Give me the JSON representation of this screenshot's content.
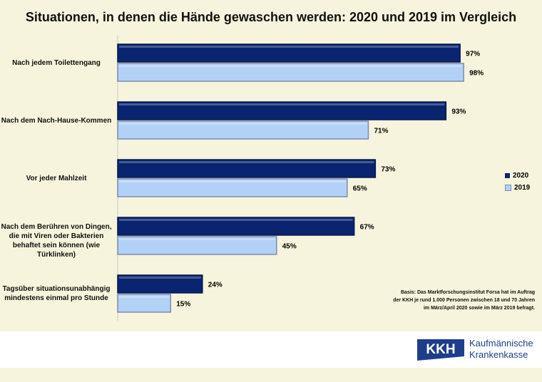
{
  "chart_data": {
    "type": "bar",
    "orientation": "horizontal",
    "title": "Situationen, in denen die Hände gewaschen werden: 2020 und 2019 im Vergleich",
    "categories": [
      "Nach jedem Toilettengang",
      "Nach dem Nach-Hause-Kommen",
      "Vor jeder Mahlzeit",
      "Nach dem Berühren von Dingen, die mit Viren oder Bakterien behaftet sein können (wie Türklinken)",
      "Tagsüber situationsunabhängig mindestens einmal pro Stunde"
    ],
    "series": [
      {
        "name": "2020",
        "values": [
          97,
          93,
          73,
          67,
          24
        ],
        "color": "#0a2470"
      },
      {
        "name": "2019",
        "values": [
          98,
          71,
          65,
          45,
          15
        ],
        "color": "#b3d1f7"
      }
    ],
    "unit": "%",
    "xlim": [
      0,
      100
    ],
    "grid": false,
    "legend": "right"
  },
  "note": "Basis: Das Marktforschungsinstitut Forsa hat im Auftrag der KKH je rund 1.000 Personen zwischen 18 und 70 Jahren im März/April 2020 sowie im März 2019 befragt.",
  "logo": {
    "mark": "KKH",
    "line1": "Kaufmännische",
    "line2": "Krankenkasse"
  }
}
